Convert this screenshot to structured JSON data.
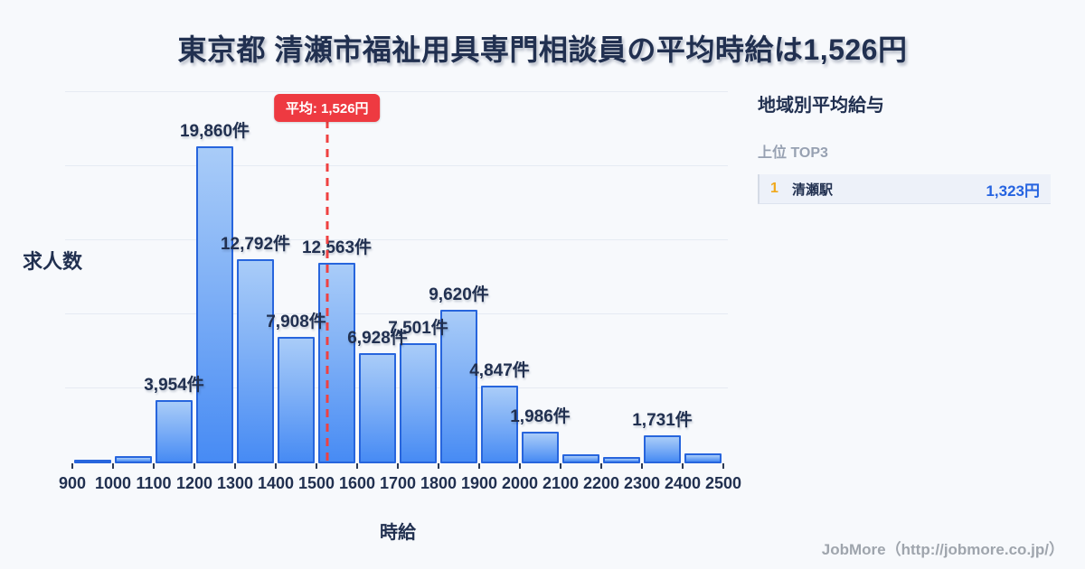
{
  "header": {
    "title": "東京都 清瀬市福祉用具専門相談員の平均時給は1,526円"
  },
  "chart_data": {
    "type": "bar",
    "title": "東京都 清瀬市福祉用具専門相談員の平均時給は1,526円",
    "xlabel": "時給",
    "ylabel": "求人数",
    "categories": [
      "900-1000",
      "1000-1100",
      "1100-1200",
      "1200-1300",
      "1300-1400",
      "1400-1500",
      "1500-1600",
      "1600-1700",
      "1700-1800",
      "1800-1900",
      "1900-2000",
      "2000-2100",
      "2100-2200",
      "2200-2300",
      "2300-2400",
      "2400-2500"
    ],
    "values": [
      150,
      450,
      3954,
      19860,
      12792,
      7908,
      12563,
      6928,
      7501,
      9620,
      4847,
      1986,
      550,
      400,
      1731,
      630
    ],
    "bar_labels": [
      "",
      "",
      "3,954件",
      "19,860件",
      "12,792件",
      "7,908件",
      "12,563件",
      "6,928件",
      "7,501件",
      "9,620件",
      "4,847件",
      "1,986件",
      "",
      "",
      "1,731件",
      ""
    ],
    "x_ticks": [
      "900",
      "1000",
      "1100",
      "1200",
      "1300",
      "1400",
      "1500",
      "1600",
      "1700",
      "1800",
      "1900",
      "2000",
      "2100",
      "2200",
      "2300",
      "2400",
      "2500"
    ],
    "average": 1526,
    "average_label": "平均: 1,526円",
    "grid": "horizontal",
    "ylim": [
      0,
      23300
    ]
  },
  "sidebar": {
    "title": "地域別平均給与",
    "subtitle": "上位 TOP3",
    "rows": [
      {
        "rank": "1",
        "name": "清瀬駅",
        "value": "1,323円"
      }
    ]
  },
  "footer": {
    "credit": "JobMore（http://jobmore.co.jp/）"
  },
  "colors": {
    "background": "#f7f9fc",
    "text_navy": "#213050",
    "bar_border": "#2765dd",
    "bar_fill_top": "#a9ccf8",
    "bar_fill_bottom": "#478bf4",
    "average_red": "#ee3a41",
    "rank_gold": "#f0a81c",
    "value_blue": "#2563e0",
    "muted_gray": "#97a1b2"
  }
}
